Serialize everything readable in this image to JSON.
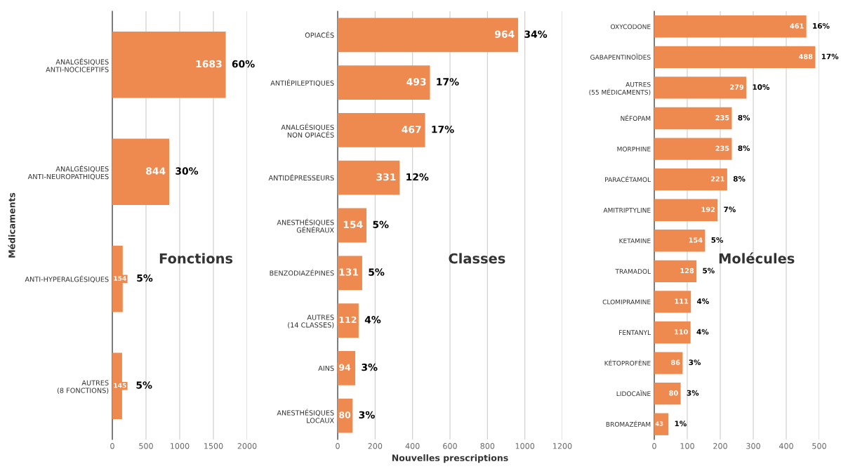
{
  "chart_data": [
    {
      "type": "bar",
      "orientation": "horizontal",
      "title": "Fonctions",
      "ylabel": "Médicaments",
      "categories": [
        "ANALGÉSIQUES\nANTI-NOCICEPTIFS",
        "ANALGÉSIQUES\nANTI-NEUROPATHIQUES",
        "ANTI-HYPERALGÉSIQUES",
        "AUTRES\n(8 FONCTIONS)"
      ],
      "values": [
        1683,
        844,
        154,
        145
      ],
      "color": "#ee8a50",
      "data_labels": true,
      "annotations": [
        {
          "text": "60%",
          "x": 1683,
          "y": "ANALGÉSIQUES\nANTI-NOCICEPTIFS"
        },
        {
          "text": "30%",
          "x": 844,
          "y": "ANALGÉSIQUES\nANTI-NEUROPATHIQUES"
        },
        {
          "text": "5%",
          "x": 154,
          "y": "ANTI-HYPERALGÉSIQUES"
        },
        {
          "text": "5%",
          "x": 145,
          "y": "AUTRES\n(8 FONCTIONS)"
        }
      ],
      "xlim": [
        0,
        2000
      ],
      "xticks": [
        0,
        500,
        1000,
        1500,
        2000
      ],
      "grid": "x"
    },
    {
      "type": "bar",
      "orientation": "horizontal",
      "title": "Classes",
      "xlabel": "Nouvelles prescriptions",
      "categories": [
        "OPIACÉS",
        "ANTIÉPILEPTIQUES",
        "ANALGÉSIQUES\nNON OPIACÉS",
        "ANTIDÉPRESSEURS",
        "ANESTHÉSIQUES\nGÉNÉRAUX",
        "BENZODIAZÉPINES",
        "AUTRES\n(14 CLASSES)",
        "AINS",
        "ANESTHÉSIQUES\nLOCAUX"
      ],
      "values": [
        964,
        493,
        467,
        331,
        154,
        131,
        112,
        94,
        80
      ],
      "color": "#ee8a50",
      "data_labels": true,
      "annotations": [
        {
          "text": "34%",
          "x": 964,
          "y": "OPIACÉS"
        },
        {
          "text": "17%",
          "x": 493,
          "y": "ANTIÉPILEPTIQUES"
        },
        {
          "text": "17%",
          "x": 467,
          "y": "ANALGÉSIQUES\nNON OPIACÉS"
        },
        {
          "text": "12%",
          "x": 331,
          "y": "ANTIDÉPRESSEURS"
        },
        {
          "text": "5%",
          "x": 154,
          "y": "ANESTHÉSIQUES\nGÉNÉRAUX"
        },
        {
          "text": "5%",
          "x": 131,
          "y": "BENZODIAZÉPINES"
        },
        {
          "text": "4%",
          "x": 112,
          "y": "AUTRES\n(14 CLASSES)"
        },
        {
          "text": "3%",
          "x": 94,
          "y": "AINS"
        },
        {
          "text": "3%",
          "x": 80,
          "y": "ANESTHÉSIQUES\nLOCAUX"
        }
      ],
      "xlim": [
        0,
        1200
      ],
      "xticks": [
        0,
        200,
        400,
        600,
        800,
        1000,
        1200
      ],
      "grid": "x"
    },
    {
      "type": "bar",
      "orientation": "horizontal",
      "title": "Molécules",
      "categories": [
        "OXYCODONE",
        "GABAPENTINOÏDES",
        "AUTRES\n(55 MÉDICAMENTS)",
        "NÉFOPAM",
        "MORPHINE",
        "PARACÉTAMOL",
        "AMITRIPTYLINE",
        "KETAMINE",
        "TRAMADOL",
        "CLOMIPRAMINE",
        "FENTANYL",
        "KÉTOPROFÈNE",
        "LIDOCAÏNE",
        "BROMAZÉPAM"
      ],
      "values": [
        461,
        488,
        279,
        235,
        235,
        221,
        192,
        154,
        128,
        111,
        110,
        86,
        80,
        43
      ],
      "color": "#ee8a50",
      "data_labels": true,
      "annotations": [
        {
          "text": "16%",
          "x": 461,
          "y": "OXYCODONE"
        },
        {
          "text": "17%",
          "x": 488,
          "y": "GABAPENTINOÏDES"
        },
        {
          "text": "10%",
          "x": 279,
          "y": "AUTRES\n(55 MÉDICAMENTS)"
        },
        {
          "text": "8%",
          "x": 235,
          "y": "NÉFOPAM"
        },
        {
          "text": "8%",
          "x": 235,
          "y": "MORPHINE"
        },
        {
          "text": "8%",
          "x": 221,
          "y": "PARACÉTAMOL"
        },
        {
          "text": "7%",
          "x": 192,
          "y": "AMITRIPTYLINE"
        },
        {
          "text": "5%",
          "x": 154,
          "y": "KETAMINE"
        },
        {
          "text": "5%",
          "x": 128,
          "y": "TRAMADOL"
        },
        {
          "text": "4%",
          "x": 111,
          "y": "CLOMIPRAMINE"
        },
        {
          "text": "4%",
          "x": 110,
          "y": "FENTANYL"
        },
        {
          "text": "3%",
          "x": 86,
          "y": "KÉTOPROFÈNE"
        },
        {
          "text": "3%",
          "x": 80,
          "y": "LIDOCAÏNE"
        },
        {
          "text": "1%",
          "x": 43,
          "y": "BROMAZÉPAM"
        }
      ],
      "xlim": [
        0,
        500
      ],
      "xticks": [
        0,
        100,
        200,
        300,
        400,
        500
      ],
      "grid": "x"
    }
  ]
}
